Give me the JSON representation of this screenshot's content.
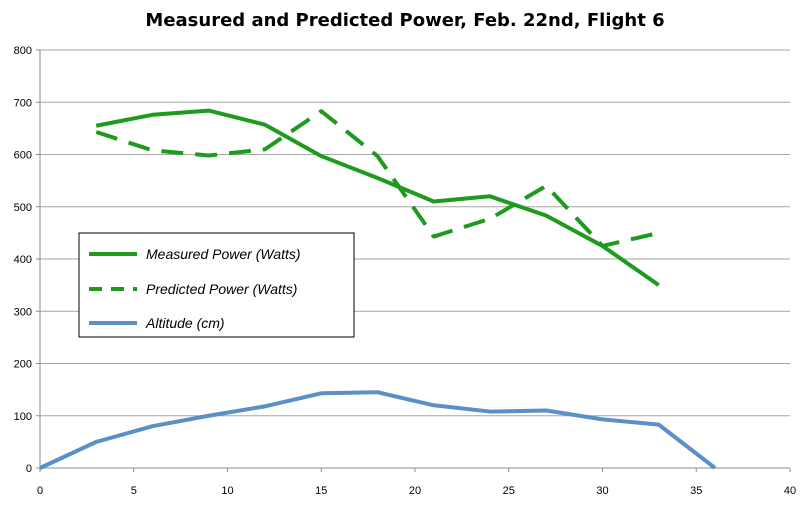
{
  "chart_data": {
    "type": "line",
    "title": "Measured and Predicted Power, Feb. 22nd, Flight 6",
    "xlabel": "",
    "ylabel": "",
    "xlim": [
      0,
      40
    ],
    "ylim": [
      0,
      800
    ],
    "x_ticks": [
      0,
      5,
      10,
      15,
      20,
      25,
      30,
      35,
      40
    ],
    "y_ticks": [
      0,
      100,
      200,
      300,
      400,
      500,
      600,
      700,
      800
    ],
    "grid": "horizontal",
    "legend_position": "inside-left",
    "series": [
      {
        "name": "Measured Power (Watts)",
        "color": "#1e9a1e",
        "style": "solid",
        "x": [
          3,
          6,
          9,
          12,
          15,
          18,
          21,
          24,
          27,
          30,
          33
        ],
        "y": [
          655,
          676,
          684,
          657,
          597,
          555,
          510,
          520,
          483,
          425,
          350
        ]
      },
      {
        "name": "Predicted Power (Watts)",
        "color": "#1e9a1e",
        "style": "dashed",
        "x": [
          3,
          6,
          9,
          12,
          15,
          18,
          21,
          24,
          27,
          30,
          33
        ],
        "y": [
          643,
          608,
          598,
          610,
          683,
          597,
          443,
          477,
          540,
          425,
          450
        ]
      },
      {
        "name": "Altitude (cm)",
        "color": "#5b8fc8",
        "style": "solid",
        "x": [
          0,
          3,
          6,
          9,
          12,
          15,
          18,
          21,
          24,
          27,
          30,
          33,
          36
        ],
        "y": [
          0,
          50,
          80,
          100,
          118,
          143,
          145,
          120,
          108,
          110,
          93,
          83,
          0
        ]
      }
    ]
  }
}
